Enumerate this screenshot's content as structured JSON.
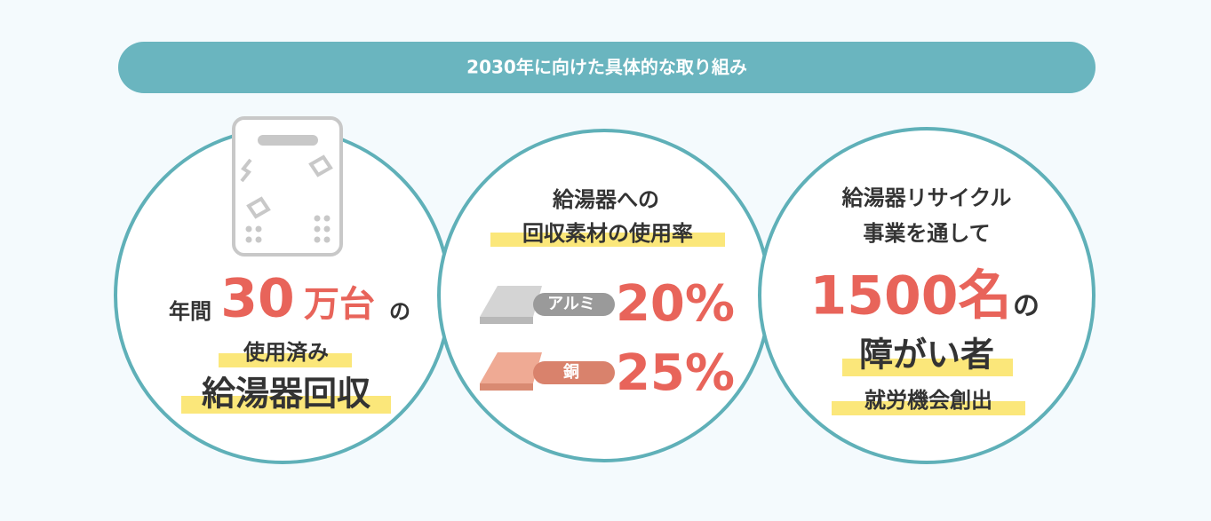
{
  "header": {
    "title": "2030年に向けた具体的な取り組み"
  },
  "circles": [
    {
      "line1_prefix": "年間",
      "number": "30",
      "unit": "万台",
      "suffix": "の",
      "line2": "使用済み",
      "line3": "給湯器回収"
    },
    {
      "line1": "給湯器への",
      "line2": "回収素材の使用率",
      "materials": [
        {
          "label": "アルミ",
          "rate": "20%"
        },
        {
          "label": "銅",
          "rate": "25%"
        }
      ]
    },
    {
      "line1": "給湯器リサイクル",
      "line2": "事業を通して",
      "number": "1500名",
      "suffix": "の",
      "line3": "障がい者",
      "line4": "就労機会創出"
    }
  ]
}
